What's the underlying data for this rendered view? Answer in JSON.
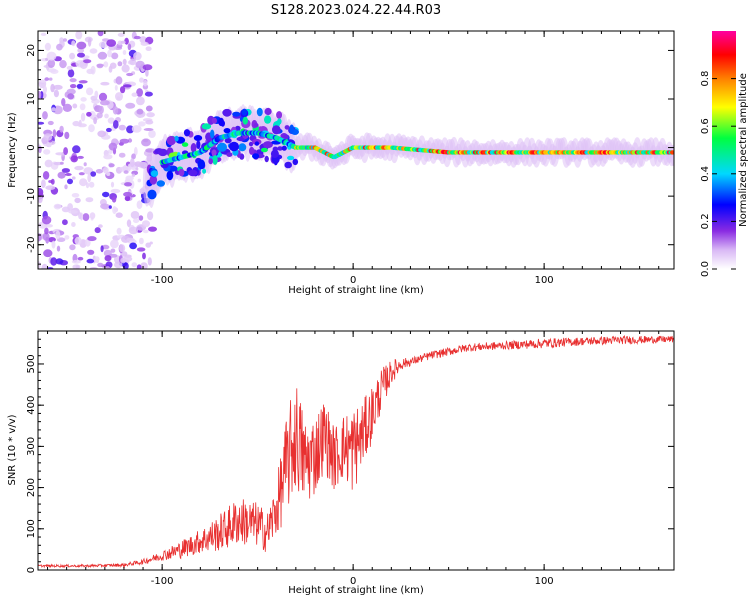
{
  "figure": {
    "title": "S128.2023.024.22.44.R03"
  },
  "chart_data": [
    {
      "type": "heatmap",
      "xlabel": "Height of straight line (km)",
      "ylabel": "Frequency (Hz)",
      "xlim": [
        -165,
        168
      ],
      "ylim": [
        -25,
        24
      ],
      "xticks": [
        -100,
        0,
        100
      ],
      "yticks": [
        -20,
        -10,
        0,
        10,
        20
      ],
      "colorbar": {
        "label": "Normalized spectral amplitude",
        "range": [
          0,
          1
        ],
        "ticks": [
          0.0,
          0.2,
          0.4,
          0.6,
          0.8
        ],
        "tick_labels": [
          "0.0",
          "0.2",
          "0.4",
          "0.6",
          "0.8"
        ],
        "colormap": "rainbow (white → violet → blue → cyan → green → yellow → red → magenta)"
      },
      "ridge": {
        "description": "spectral peak frequency vs height",
        "x": [
          -108,
          -100,
          -90,
          -80,
          -70,
          -60,
          -50,
          -40,
          -30,
          -20,
          -10,
          0,
          20,
          50,
          80,
          100,
          130,
          160
        ],
        "frequency": [
          -8,
          -3,
          -2,
          -1,
          2,
          3,
          3,
          2,
          0,
          0,
          -2,
          0,
          0,
          -1,
          -1,
          -1,
          -1,
          -1
        ]
      },
      "noise_region": {
        "x_from": -165,
        "x_to": -105,
        "frequency_range": [
          -25,
          24
        ]
      },
      "grid": false
    },
    {
      "type": "line",
      "xlabel": "Height of straight line (km)",
      "ylabel": "SNR (10 * v/v)",
      "xlim": [
        -165,
        168
      ],
      "ylim": [
        0,
        580
      ],
      "xticks": [
        -100,
        0,
        100
      ],
      "yticks": [
        0,
        100,
        200,
        300,
        400,
        500
      ],
      "series": [
        {
          "color": "#e83030",
          "x": [
            -165,
            -140,
            -120,
            -110,
            -100,
            -90,
            -80,
            -70,
            -60,
            -50,
            -45,
            -40,
            -35,
            -30,
            -25,
            -20,
            -15,
            -10,
            -5,
            0,
            5,
            10,
            15,
            20,
            25,
            30,
            40,
            60,
            80,
            100,
            120,
            140,
            168
          ],
          "y": [
            10,
            10,
            12,
            20,
            35,
            50,
            70,
            90,
            120,
            110,
            90,
            150,
            250,
            330,
            260,
            280,
            330,
            270,
            300,
            290,
            330,
            380,
            440,
            480,
            500,
            505,
            520,
            540,
            545,
            550,
            555,
            558,
            560
          ],
          "spread": [
            3,
            3,
            4,
            6,
            12,
            22,
            30,
            45,
            60,
            55,
            50,
            70,
            120,
            140,
            110,
            100,
            90,
            80,
            80,
            110,
            80,
            70,
            50,
            30,
            15,
            10,
            10,
            10,
            10,
            12,
            10,
            10,
            8
          ]
        }
      ],
      "grid": false
    }
  ]
}
